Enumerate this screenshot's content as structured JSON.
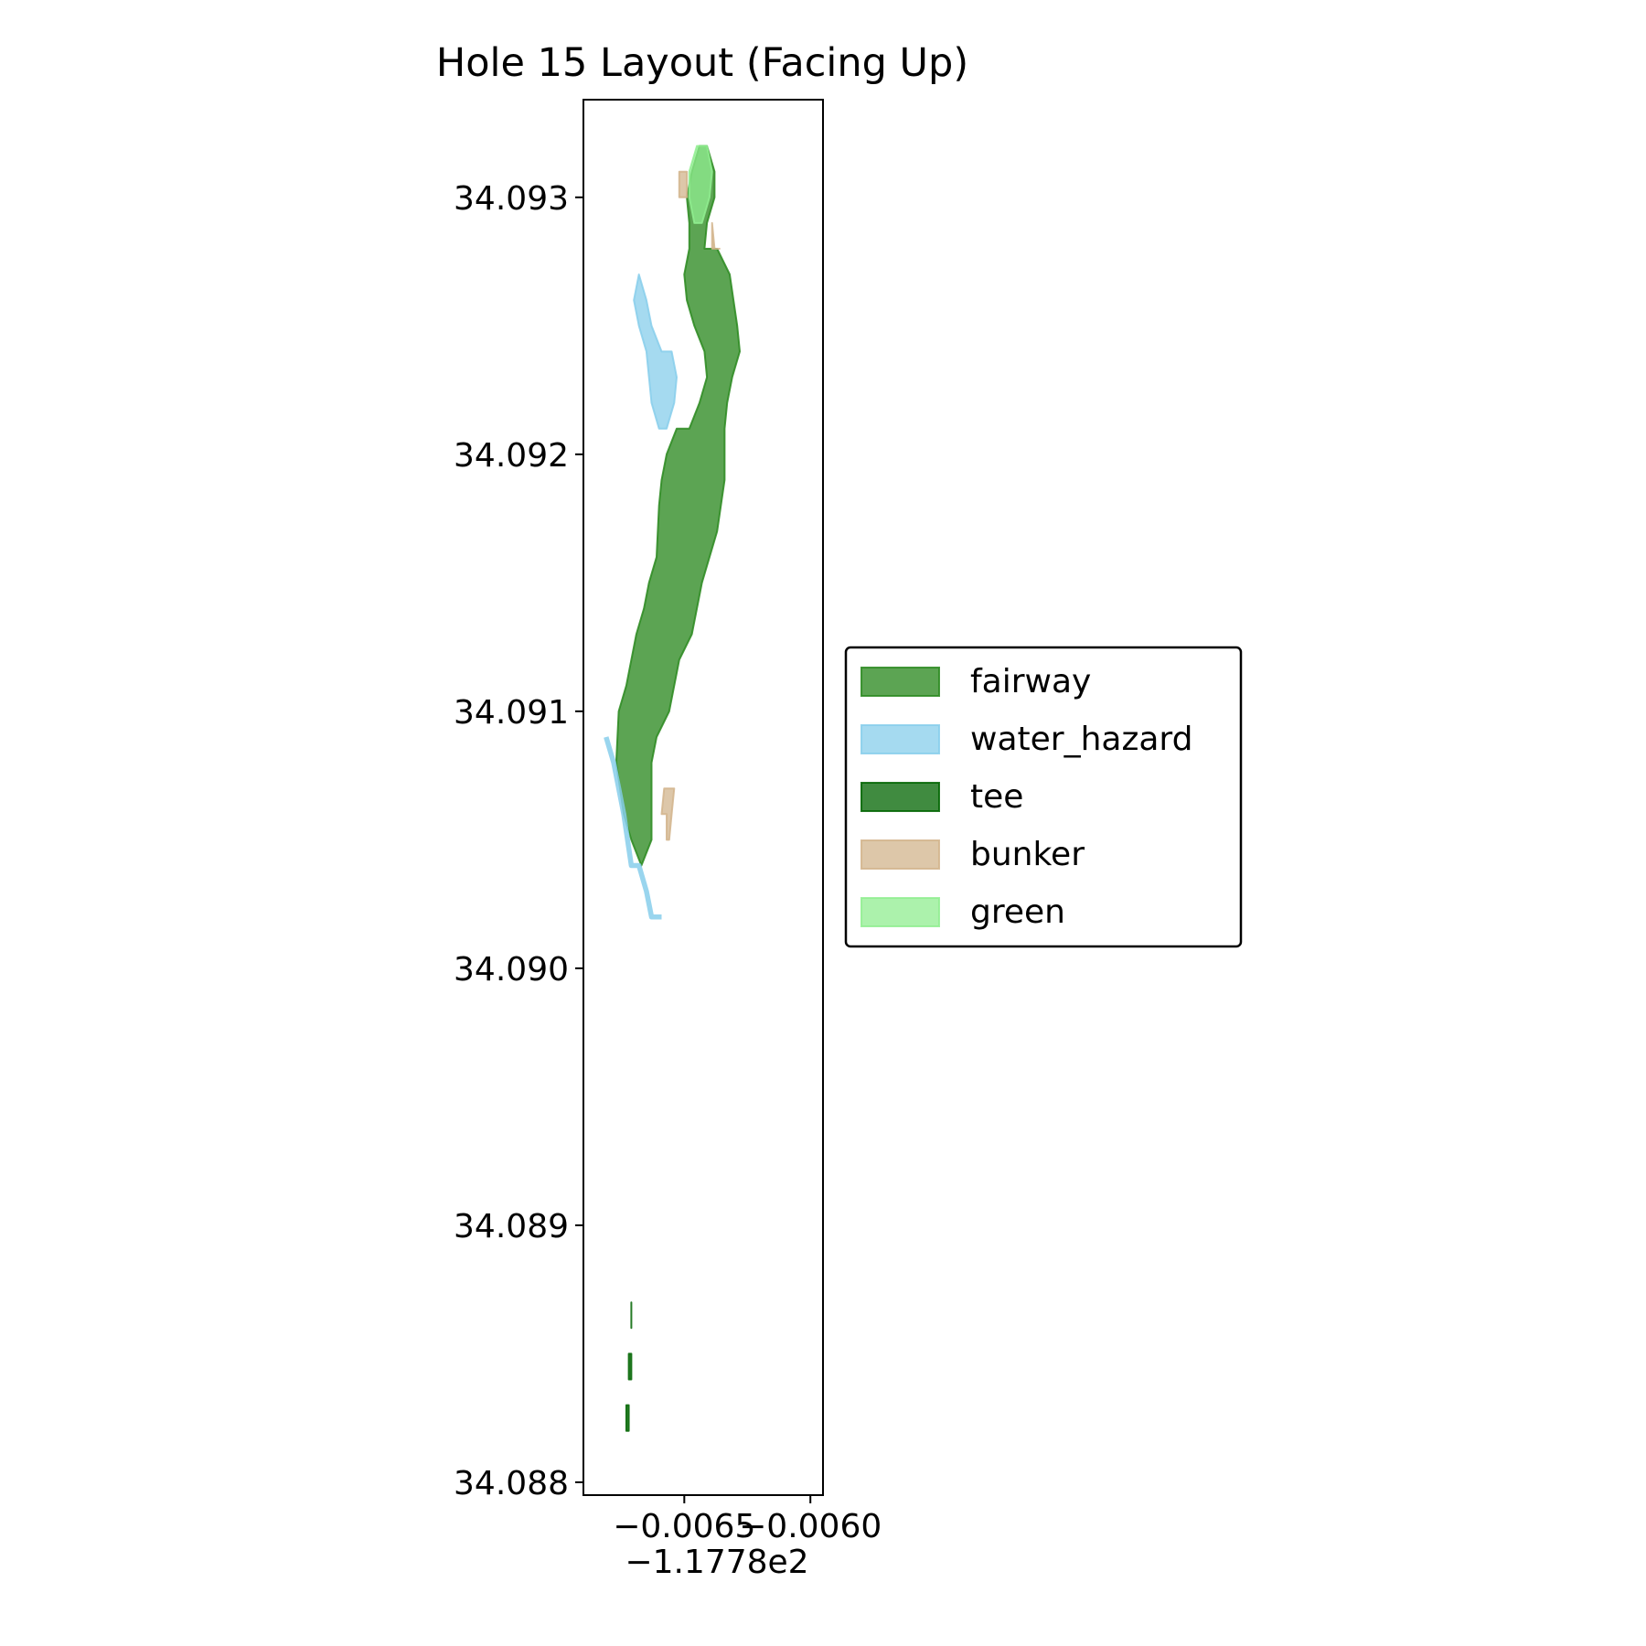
{
  "chart_data": {
    "type": "map",
    "title": "Hole 15 Layout (Facing Up)",
    "xlabel": "",
    "ylabel": "",
    "x_offset_label": "−1.1778e2",
    "x_ticks": [
      {
        "value": -0.0065,
        "label": "−0.0065"
      },
      {
        "value": -0.006,
        "label": "−0.0060"
      }
    ],
    "y_ticks": [
      {
        "value": 34.088,
        "label": "34.088"
      },
      {
        "value": 34.089,
        "label": "34.089"
      },
      {
        "value": 34.09,
        "label": "34.090"
      },
      {
        "value": 34.091,
        "label": "34.091"
      },
      {
        "value": 34.092,
        "label": "34.092"
      },
      {
        "value": 34.093,
        "label": "34.093"
      }
    ],
    "xlim": [
      -0.0069,
      -0.00595
    ],
    "ylim": [
      34.08795,
      34.09338
    ],
    "grid": false,
    "legend_position": "center-left outside",
    "legend": [
      {
        "name": "fairway",
        "fill": "#2e8b22",
        "edge": "#2e8b22",
        "alpha": 0.78
      },
      {
        "name": "water_hazard",
        "fill": "#87ceeb",
        "edge": "#87ceeb",
        "alpha": 0.75
      },
      {
        "name": "tee",
        "fill": "#006400",
        "edge": "#006400",
        "alpha": 0.75
      },
      {
        "name": "bunker",
        "fill": "#d2b48c",
        "edge": "#d2b48c",
        "alpha": 0.75
      },
      {
        "name": "green",
        "fill": "#90ee90",
        "edge": "#90ee90",
        "alpha": 0.75
      }
    ],
    "features": [
      {
        "kind": "fairway",
        "fill": "#2e8b22",
        "edge": "#2e8b22",
        "alpha": 0.78,
        "points": [
          [
            -0.00677,
            34.0908
          ],
          [
            -0.00676,
            34.091
          ],
          [
            -0.00673,
            34.0911
          ],
          [
            -0.00671,
            34.0912
          ],
          [
            -0.00669,
            34.0913
          ],
          [
            -0.00666,
            34.0914
          ],
          [
            -0.00664,
            34.0915
          ],
          [
            -0.00661,
            34.0916
          ],
          [
            -0.0066,
            34.0918
          ],
          [
            -0.00659,
            34.0919
          ],
          [
            -0.00657,
            34.092
          ],
          [
            -0.00653,
            34.0921
          ],
          [
            -0.00648,
            34.0921
          ],
          [
            -0.00644,
            34.0922
          ],
          [
            -0.00641,
            34.0923
          ],
          [
            -0.00642,
            34.0924
          ],
          [
            -0.00646,
            34.0925
          ],
          [
            -0.00649,
            34.0926
          ],
          [
            -0.0065,
            34.0927
          ],
          [
            -0.00648,
            34.0928
          ],
          [
            -0.00648,
            34.0929
          ],
          [
            -0.00649,
            34.093
          ],
          [
            -0.00647,
            34.0931
          ],
          [
            -0.00644,
            34.0932
          ],
          [
            -0.00641,
            34.0932
          ],
          [
            -0.00638,
            34.0931
          ],
          [
            -0.00638,
            34.093
          ],
          [
            -0.00641,
            34.0929
          ],
          [
            -0.00642,
            34.0928
          ],
          [
            -0.00637,
            34.0928
          ],
          [
            -0.00632,
            34.0927
          ],
          [
            -0.00629,
            34.0925
          ],
          [
            -0.00628,
            34.0924
          ],
          [
            -0.00631,
            34.0923
          ],
          [
            -0.00633,
            34.0922
          ],
          [
            -0.00634,
            34.0921
          ],
          [
            -0.00634,
            34.0919
          ],
          [
            -0.00637,
            34.0917
          ],
          [
            -0.00643,
            34.0915
          ],
          [
            -0.00647,
            34.0913
          ],
          [
            -0.00652,
            34.0912
          ],
          [
            -0.00656,
            34.091
          ],
          [
            -0.00661,
            34.0909
          ],
          [
            -0.00663,
            34.0908
          ],
          [
            -0.00663,
            34.0905
          ],
          [
            -0.00667,
            34.0904
          ],
          [
            -0.00671,
            34.0905
          ],
          [
            -0.00674,
            34.0906
          ]
        ]
      },
      {
        "kind": "water_hazard",
        "fill": "#87ceeb",
        "edge": "#87ceeb",
        "alpha": 0.75,
        "points": [
          [
            -0.00665,
            34.0926
          ],
          [
            -0.00663,
            34.0925
          ],
          [
            -0.00659,
            34.0924
          ],
          [
            -0.00655,
            34.0924
          ],
          [
            -0.00653,
            34.0923
          ],
          [
            -0.00654,
            34.0922
          ],
          [
            -0.00657,
            34.0921
          ],
          [
            -0.0066,
            34.0921
          ],
          [
            -0.00663,
            34.0922
          ],
          [
            -0.00664,
            34.0923
          ],
          [
            -0.00665,
            34.0924
          ],
          [
            -0.00668,
            34.0925
          ],
          [
            -0.0067,
            34.0926
          ],
          [
            -0.00668,
            34.0927
          ]
        ]
      },
      {
        "kind": "water_hazard_stream",
        "stroke": "#87ceeb",
        "alpha": 0.85,
        "stroke_width": 2e-05,
        "points": [
          [
            -0.00681,
            34.0909
          ],
          [
            -0.00678,
            34.0908
          ],
          [
            -0.00674,
            34.0906
          ],
          [
            -0.00671,
            34.0904
          ],
          [
            -0.00668,
            34.0904
          ],
          [
            -0.00665,
            34.0903
          ],
          [
            -0.00663,
            34.0902
          ],
          [
            -0.00659,
            34.0902
          ]
        ]
      },
      {
        "kind": "tee",
        "fill": "#006400",
        "edge": "#006400",
        "alpha": 0.75,
        "points": [
          [
            -0.00671,
            34.0887
          ],
          [
            -0.00671,
            34.0887
          ],
          [
            -0.00671,
            34.0886
          ],
          [
            -0.00671,
            34.0886
          ]
        ]
      },
      {
        "kind": "tee",
        "fill": "#006400",
        "edge": "#006400",
        "alpha": 0.75,
        "points": [
          [
            -0.00672,
            34.0885
          ],
          [
            -0.00671,
            34.0885
          ],
          [
            -0.00671,
            34.0884
          ],
          [
            -0.00672,
            34.0884
          ]
        ]
      },
      {
        "kind": "tee",
        "fill": "#006400",
        "edge": "#006400",
        "alpha": 0.75,
        "points": [
          [
            -0.00673,
            34.0883
          ],
          [
            -0.00672,
            34.0883
          ],
          [
            -0.00672,
            34.0882
          ],
          [
            -0.00673,
            34.0882
          ],
          [
            -0.00673,
            34.0882
          ]
        ]
      },
      {
        "kind": "bunker",
        "fill": "#d2b48c",
        "edge": "#d2b48c",
        "alpha": 0.75,
        "points": [
          [
            -0.00658,
            34.0907
          ],
          [
            -0.00656,
            34.0907
          ],
          [
            -0.00654,
            34.0907
          ],
          [
            -0.00655,
            34.0906
          ],
          [
            -0.00656,
            34.0905
          ],
          [
            -0.00657,
            34.0905
          ],
          [
            -0.00657,
            34.0906
          ],
          [
            -0.00659,
            34.0906
          ]
        ]
      },
      {
        "kind": "bunker",
        "fill": "#d2b48c",
        "edge": "#d2b48c",
        "alpha": 0.75,
        "points": [
          [
            -0.00652,
            34.0931
          ],
          [
            -0.0065,
            34.0931
          ],
          [
            -0.00649,
            34.0931
          ],
          [
            -0.00649,
            34.093
          ],
          [
            -0.0065,
            34.093
          ],
          [
            -0.00651,
            34.093
          ],
          [
            -0.00652,
            34.093
          ]
        ]
      },
      {
        "kind": "bunker",
        "fill": "#d2b48c",
        "edge": "#d2b48c",
        "alpha": 0.75,
        "points": [
          [
            -0.00639,
            34.0929
          ],
          [
            -0.00638,
            34.0928
          ],
          [
            -0.00637,
            34.0928
          ],
          [
            -0.00636,
            34.0928
          ],
          [
            -0.00637,
            34.0928
          ],
          [
            -0.00638,
            34.0928
          ],
          [
            -0.00639,
            34.0928
          ]
        ]
      },
      {
        "kind": "green",
        "fill": "#90ee90",
        "edge": "#90ee90",
        "alpha": 0.75,
        "points": [
          [
            -0.00648,
            34.0931
          ],
          [
            -0.00645,
            34.0932
          ],
          [
            -0.00641,
            34.0932
          ],
          [
            -0.00639,
            34.0931
          ],
          [
            -0.0064,
            34.093
          ],
          [
            -0.00643,
            34.0929
          ],
          [
            -0.00646,
            34.0929
          ],
          [
            -0.00648,
            34.093
          ]
        ]
      }
    ]
  }
}
